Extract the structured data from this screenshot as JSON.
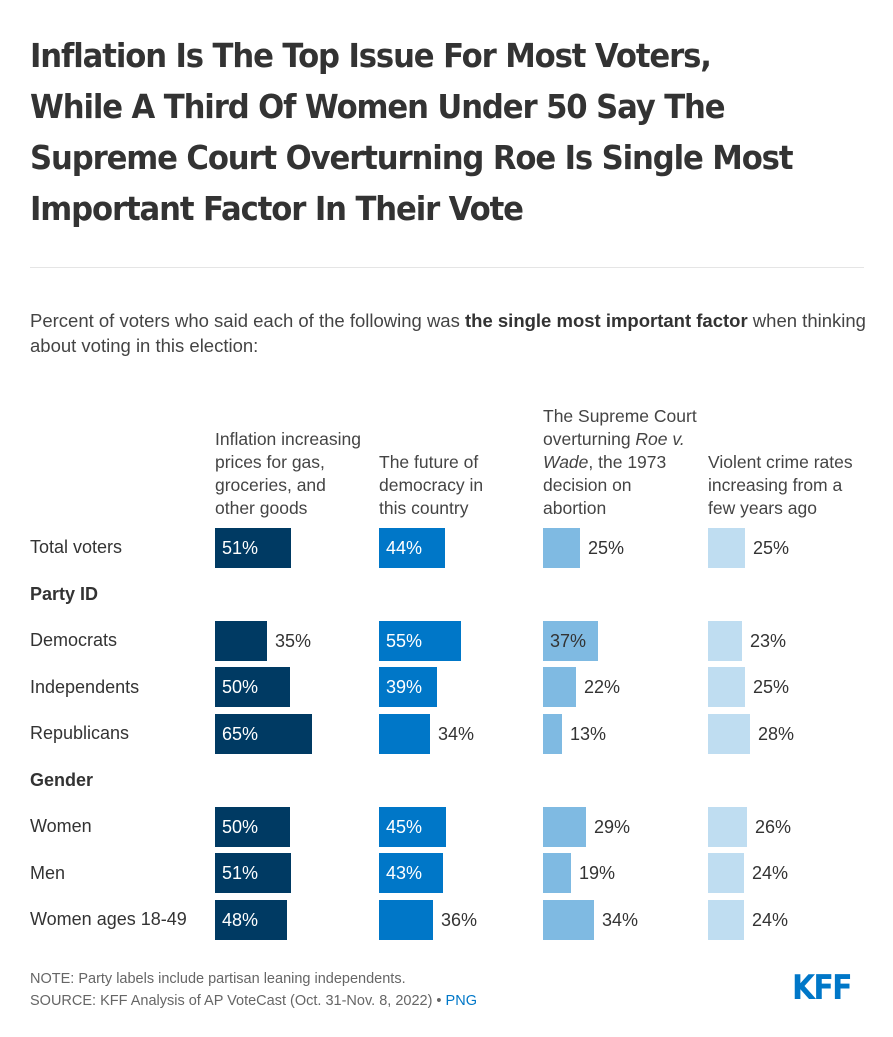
{
  "header": {
    "title": "Inflation Is The Top Issue For Most Voters, While A Third Of Women Under 50 Say The Supreme Court Overturning Roe Is Single Most Important Factor In Their Vote"
  },
  "subtitle": {
    "prefix": "Percent of voters who said each of the following was ",
    "bold": "the single most important factor",
    "suffix": " when thinking about voting in this election:"
  },
  "chart_data": {
    "type": "bar",
    "orientation": "horizontal",
    "layout": "small-multiples",
    "title": "Percent of voters who said each of the following was the single most important factor when thinking about voting in this election",
    "unit": "%",
    "series": [
      {
        "name": "Inflation increasing prices for gas, groceries, and other goods",
        "color": "#003a63",
        "values": [
          51,
          35,
          50,
          65,
          50,
          51,
          48
        ]
      },
      {
        "name": "The future of democracy in this country",
        "color": "#0077c8",
        "values": [
          44,
          55,
          39,
          34,
          45,
          43,
          36
        ]
      },
      {
        "name": "The Supreme Court overturning Roe v. Wade, the 1973 decision on abortion",
        "color": "#7fbae2",
        "values": [
          25,
          37,
          22,
          13,
          29,
          19,
          34
        ]
      },
      {
        "name": "Violent crime rates increasing from a few years ago",
        "color": "#bfddf1",
        "values": [
          25,
          23,
          25,
          28,
          26,
          24,
          24
        ]
      }
    ],
    "categories": [
      "Total voters",
      "Democrats",
      "Independents",
      "Republicans",
      "Women",
      "Men",
      "Women ages 18-49"
    ],
    "groups": [
      {
        "label": null,
        "categories": [
          "Total voters"
        ]
      },
      {
        "label": "Party ID",
        "categories": [
          "Democrats",
          "Independents",
          "Republicans"
        ]
      },
      {
        "label": "Gender",
        "categories": [
          "Women",
          "Men",
          "Women ages 18-49"
        ]
      }
    ],
    "labels_inside": [
      [
        true,
        false,
        true,
        true,
        true,
        true,
        true
      ],
      [
        true,
        true,
        true,
        false,
        true,
        true,
        false
      ],
      [
        false,
        true,
        false,
        false,
        false,
        false,
        false
      ],
      [
        false,
        false,
        false,
        false,
        false,
        false,
        false
      ]
    ],
    "xlim": [
      0,
      100
    ]
  },
  "column_headers": [
    {
      "parts": [
        {
          "text": "Inflation increasing prices for gas, groceries, and other goods",
          "italic": false
        }
      ]
    },
    {
      "parts": [
        {
          "text": "The future of democracy in this country",
          "italic": false
        }
      ]
    },
    {
      "parts": [
        {
          "text": "The Supreme Court overturning ",
          "italic": false
        },
        {
          "text": "Roe v. Wade",
          "italic": true
        },
        {
          "text": ", the 1973 decision on abortion",
          "italic": false
        }
      ]
    },
    {
      "parts": [
        {
          "text": "Violent crime rates increasing from a few years ago",
          "italic": false
        }
      ]
    }
  ],
  "row_labels": {
    "total": "Total voters",
    "party_group": "Party ID",
    "democrats": "Democrats",
    "independents": "Independents",
    "republicans": "Republicans",
    "gender_group": "Gender",
    "women": "Women",
    "men": "Men",
    "women_18_49": "Women ages 18-49"
  },
  "footer": {
    "note": "NOTE: Party labels include partisan leaning independents.",
    "source": "SOURCE: KFF Analysis of AP VoteCast (Oct. 31-Nov. 8, 2022)",
    "separator": " • ",
    "png_link": "PNG"
  },
  "logo": {
    "text": "KFF",
    "color": "#0077c8"
  }
}
